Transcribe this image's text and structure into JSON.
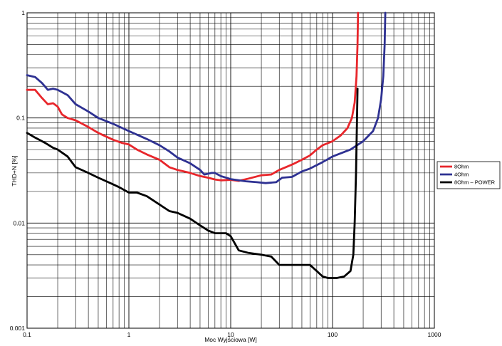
{
  "chart_data": {
    "type": "line",
    "title": "",
    "xlabel": "Moc Wyjściowa [W]",
    "ylabel": "THD+N [%]",
    "xscale": "log",
    "yscale": "log",
    "xlim": [
      0.1,
      1000
    ],
    "ylim": [
      0.001,
      1
    ],
    "grid": true,
    "legend_position": "right",
    "x_ticks": [
      {
        "value": 0.1,
        "label": "0.1"
      },
      {
        "value": 1,
        "label": "1"
      },
      {
        "value": 10,
        "label": "10"
      },
      {
        "value": 100,
        "label": "100"
      },
      {
        "value": 1000,
        "label": "1000"
      }
    ],
    "y_ticks": [
      {
        "value": 0.001,
        "label": "0.001"
      },
      {
        "value": 0.01,
        "label": "0.01"
      },
      {
        "value": 0.1,
        "label": "0.1"
      },
      {
        "value": 1,
        "label": "1"
      }
    ],
    "series": [
      {
        "name": "8Ohm",
        "color": "#e8262b",
        "points": [
          [
            0.1,
            0.185
          ],
          [
            0.12,
            0.185
          ],
          [
            0.14,
            0.155
          ],
          [
            0.16,
            0.135
          ],
          [
            0.18,
            0.138
          ],
          [
            0.2,
            0.128
          ],
          [
            0.22,
            0.108
          ],
          [
            0.25,
            0.1
          ],
          [
            0.3,
            0.095
          ],
          [
            0.4,
            0.082
          ],
          [
            0.5,
            0.072
          ],
          [
            0.7,
            0.062
          ],
          [
            0.85,
            0.058
          ],
          [
            1.0,
            0.056
          ],
          [
            1.2,
            0.05
          ],
          [
            1.5,
            0.045
          ],
          [
            2.0,
            0.04
          ],
          [
            2.5,
            0.034
          ],
          [
            3.0,
            0.032
          ],
          [
            4.0,
            0.03
          ],
          [
            5.0,
            0.028
          ],
          [
            6.0,
            0.027
          ],
          [
            7.0,
            0.026
          ],
          [
            8.0,
            0.0255
          ],
          [
            10.0,
            0.0258
          ],
          [
            12.0,
            0.0252
          ],
          [
            15.0,
            0.0265
          ],
          [
            20.0,
            0.0285
          ],
          [
            25.0,
            0.029
          ],
          [
            30.0,
            0.032
          ],
          [
            40.0,
            0.036
          ],
          [
            50.0,
            0.04
          ],
          [
            60.0,
            0.044
          ],
          [
            70.0,
            0.05
          ],
          [
            80.0,
            0.055
          ],
          [
            100.0,
            0.06
          ],
          [
            120.0,
            0.068
          ],
          [
            140.0,
            0.08
          ],
          [
            155.0,
            0.1
          ],
          [
            165.0,
            0.14
          ],
          [
            172.0,
            0.25
          ],
          [
            176.0,
            0.5
          ],
          [
            178.0,
            1.0
          ]
        ]
      },
      {
        "name": "4Ohm",
        "color": "#2e3192",
        "points": [
          [
            0.1,
            0.255
          ],
          [
            0.12,
            0.245
          ],
          [
            0.14,
            0.215
          ],
          [
            0.16,
            0.185
          ],
          [
            0.18,
            0.19
          ],
          [
            0.2,
            0.185
          ],
          [
            0.25,
            0.165
          ],
          [
            0.3,
            0.135
          ],
          [
            0.4,
            0.115
          ],
          [
            0.5,
            0.1
          ],
          [
            0.7,
            0.088
          ],
          [
            1.0,
            0.075
          ],
          [
            1.5,
            0.063
          ],
          [
            2.0,
            0.055
          ],
          [
            2.5,
            0.048
          ],
          [
            3.0,
            0.042
          ],
          [
            4.0,
            0.037
          ],
          [
            5.0,
            0.032
          ],
          [
            5.5,
            0.029
          ],
          [
            6.5,
            0.03
          ],
          [
            7.0,
            0.03
          ],
          [
            8.0,
            0.028
          ],
          [
            10.0,
            0.0262
          ],
          [
            12.0,
            0.0255
          ],
          [
            14.0,
            0.025
          ],
          [
            18.0,
            0.0245
          ],
          [
            22.0,
            0.024
          ],
          [
            28.0,
            0.0245
          ],
          [
            32.0,
            0.027
          ],
          [
            40.0,
            0.0275
          ],
          [
            50.0,
            0.031
          ],
          [
            60.0,
            0.033
          ],
          [
            80.0,
            0.038
          ],
          [
            100.0,
            0.043
          ],
          [
            150.0,
            0.05
          ],
          [
            200.0,
            0.06
          ],
          [
            250.0,
            0.075
          ],
          [
            280.0,
            0.1
          ],
          [
            300.0,
            0.15
          ],
          [
            315.0,
            0.25
          ],
          [
            325.0,
            0.5
          ],
          [
            330.0,
            1.0
          ]
        ]
      },
      {
        "name": "8Ohm – POWER",
        "color": "#000000",
        "points": [
          [
            0.1,
            0.072
          ],
          [
            0.12,
            0.065
          ],
          [
            0.15,
            0.058
          ],
          [
            0.18,
            0.052
          ],
          [
            0.2,
            0.05
          ],
          [
            0.25,
            0.043
          ],
          [
            0.3,
            0.034
          ],
          [
            0.4,
            0.03
          ],
          [
            0.5,
            0.027
          ],
          [
            0.6,
            0.025
          ],
          [
            0.8,
            0.022
          ],
          [
            1.0,
            0.0195
          ],
          [
            1.2,
            0.0195
          ],
          [
            1.5,
            0.018
          ],
          [
            2.0,
            0.015
          ],
          [
            2.5,
            0.013
          ],
          [
            3.0,
            0.0125
          ],
          [
            4.0,
            0.011
          ],
          [
            5.0,
            0.0095
          ],
          [
            6.0,
            0.0085
          ],
          [
            7.0,
            0.008
          ],
          [
            9.0,
            0.008
          ],
          [
            10.0,
            0.0075
          ],
          [
            12.0,
            0.0055
          ],
          [
            15.0,
            0.0052
          ],
          [
            20.0,
            0.005
          ],
          [
            25.0,
            0.0048
          ],
          [
            30.0,
            0.004
          ],
          [
            40.0,
            0.004
          ],
          [
            50.0,
            0.004
          ],
          [
            60.0,
            0.004
          ],
          [
            70.0,
            0.0035
          ],
          [
            80.0,
            0.0031
          ],
          [
            90.0,
            0.003
          ],
          [
            110.0,
            0.003
          ],
          [
            130.0,
            0.0031
          ],
          [
            150.0,
            0.0035
          ],
          [
            160.0,
            0.005
          ],
          [
            165.0,
            0.01
          ],
          [
            170.0,
            0.03
          ],
          [
            174.0,
            0.1
          ],
          [
            176.0,
            0.19
          ]
        ]
      }
    ]
  }
}
